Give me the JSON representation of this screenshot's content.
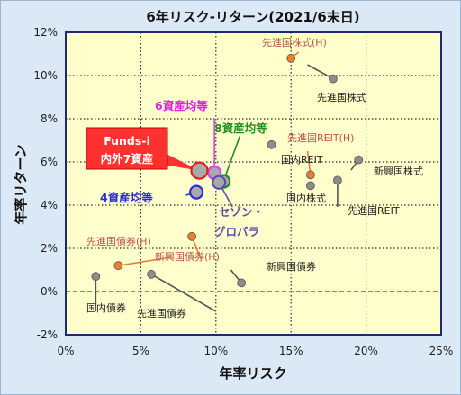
{
  "chart_data": {
    "type": "scatter",
    "title": "6年リスク-リターン(2021/6末日)",
    "xlabel": "年率リスク",
    "ylabel": "年率リターン",
    "xlim": [
      0,
      25
    ],
    "ylim": [
      -2,
      12
    ],
    "xticks": [
      "0%",
      "5%",
      "10%",
      "15%",
      "20%",
      "25%"
    ],
    "yticks": [
      "-2%",
      "0%",
      "2%",
      "4%",
      "6%",
      "8%",
      "10%",
      "12%"
    ],
    "grid": true,
    "points": [
      {
        "name": "先進国株式(H)",
        "x": 15.0,
        "y": 10.8,
        "color": "#ed7d31"
      },
      {
        "name": "先進国株式",
        "x": 17.8,
        "y": 9.85,
        "color": "#8c8c8c"
      },
      {
        "name": "国内REIT",
        "x": 13.7,
        "y": 6.8,
        "color": "#8c8c8c"
      },
      {
        "name": "先進国REIT(H)",
        "x": 16.3,
        "y": 5.4,
        "color": "#ed7d31"
      },
      {
        "name": "新興国株式",
        "x": 19.5,
        "y": 6.1,
        "color": "#8c8c8c"
      },
      {
        "name": "国内株式",
        "x": 16.3,
        "y": 4.9,
        "color": "#8c8c8c"
      },
      {
        "name": "先進国REIT",
        "x": 18.1,
        "y": 5.15,
        "color": "#8c8c8c"
      },
      {
        "name": "先進国債券(H)",
        "x": 3.5,
        "y": 1.2,
        "color": "#ed7d31"
      },
      {
        "name": "国内債券",
        "x": 2.0,
        "y": 0.7,
        "color": "#8c8c8c"
      },
      {
        "name": "新興国債券(H)",
        "x": 8.4,
        "y": 2.55,
        "color": "#ed7d31"
      },
      {
        "name": "先進国債券",
        "x": 5.7,
        "y": 0.8,
        "color": "#8c8c8c"
      },
      {
        "name": "新興国債券",
        "x": 11.7,
        "y": 0.4,
        "color": "#8c8c8c"
      },
      {
        "name": "4資産均等",
        "x": 8.7,
        "y": 4.6,
        "color": "#2b2bd9"
      },
      {
        "name": "6資産均等",
        "x": 9.9,
        "y": 5.5,
        "color": "#e040e0"
      },
      {
        "name": "8資産均等",
        "x": 10.5,
        "y": 5.1,
        "color": "#1e8c1e"
      },
      {
        "name": "セゾン・グロバラ",
        "x": 10.2,
        "y": 5.05,
        "color": "#5a4fb0"
      },
      {
        "name": "Funds-i 内外7資産",
        "x": 8.9,
        "y": 5.6,
        "color": "#e02020"
      }
    ],
    "labels": {
      "p0": "先進国株式(H)",
      "p1": "先進国株式",
      "p2": "国内REIT",
      "p3": "先進国REIT(H)",
      "p4": "新興国株式",
      "p5": "国内株式",
      "p6": "先進国REIT",
      "p7": "先進国債券(H)",
      "p8": "国内債券",
      "p9": "新興国債券(H)",
      "p10": "先進国債券",
      "p11": "新興国債券",
      "p12": "4資産均等",
      "p13": "6資産均等",
      "p14": "8資産均等",
      "p15a": "セゾン・",
      "p15b": "グロバラ",
      "p16a": "Funds-i",
      "p16b": "内外7資産"
    }
  }
}
